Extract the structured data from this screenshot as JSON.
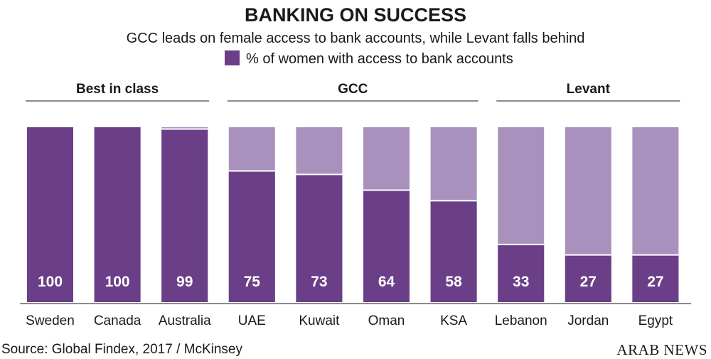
{
  "chart_data": {
    "type": "bar",
    "stacked_to": 100,
    "title": "BANKING ON SUCCESS",
    "subtitle": "GCC leads on female access to bank accounts, while Levant falls behind",
    "legend": {
      "label": "% of women with access to bank accounts",
      "position": "top"
    },
    "groups": [
      {
        "label": "Best in class",
        "categories": [
          "Sweden",
          "Canada",
          "Australia"
        ]
      },
      {
        "label": "GCC",
        "categories": [
          "UAE",
          "Kuwait",
          "Oman",
          "KSA"
        ]
      },
      {
        "label": "Levant",
        "categories": [
          "Lebanon",
          "Jordan",
          "Egypt"
        ]
      }
    ],
    "categories": [
      "Sweden",
      "Canada",
      "Australia",
      "UAE",
      "Kuwait",
      "Oman",
      "KSA",
      "Lebanon",
      "Jordan",
      "Egypt"
    ],
    "series": [
      {
        "name": "% of women with access to bank accounts",
        "values": [
          100,
          100,
          99,
          75,
          73,
          64,
          58,
          33,
          27,
          27
        ]
      }
    ],
    "ylim": [
      0,
      100
    ],
    "grid": false
  },
  "colors": {
    "bar": "#6b3f87",
    "remainder": "#a892bd",
    "axis": "#1a1a1a"
  },
  "footer": {
    "source": "Source: Global Findex, 2017 / McKinsey",
    "brand": "ARAB NEWS"
  }
}
